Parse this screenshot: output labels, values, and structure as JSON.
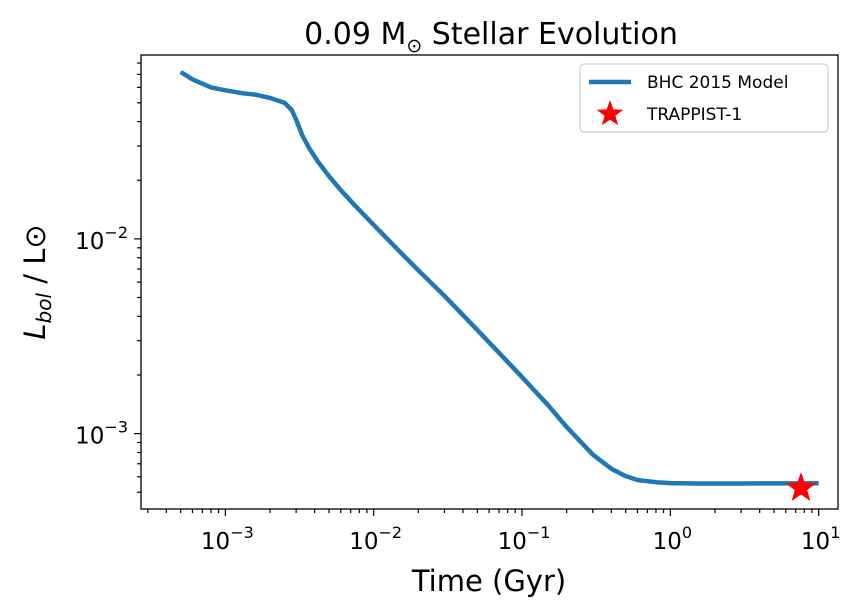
{
  "chart_data": {
    "type": "line",
    "title": "0.09 M",
    "title_symbol": "⊙",
    "title_suffix": "Stellar Evolution",
    "xlabel": "Time (Gyr)",
    "ylabel_main": "L",
    "ylabel_sub": "bol",
    "ylabel_suffix": "/ L⊙",
    "x_scale": "log",
    "y_scale": "log",
    "xlim": [
      0.00027,
      13.5
    ],
    "ylim": [
      0.00041,
      0.088
    ],
    "x_ticks": [
      {
        "value": 0.001,
        "base": "10",
        "exp": "−3"
      },
      {
        "value": 0.01,
        "base": "10",
        "exp": "−2"
      },
      {
        "value": 0.1,
        "base": "10",
        "exp": "−1"
      },
      {
        "value": 1,
        "base": "10",
        "exp": "0"
      },
      {
        "value": 10,
        "base": "10",
        "exp": "1"
      }
    ],
    "y_ticks": [
      {
        "value": 0.001,
        "base": "10",
        "exp": "−3"
      },
      {
        "value": 0.01,
        "base": "10",
        "exp": "−2"
      }
    ],
    "grid": false,
    "legend_position": "top-right",
    "series": [
      {
        "name": "BHC 2015 Model",
        "color": "#1f77b4",
        "x": [
          0.0005,
          0.0006,
          0.0008,
          0.001,
          0.0013,
          0.0016,
          0.002,
          0.0025,
          0.0028,
          0.003,
          0.0033,
          0.0037,
          0.0042,
          0.005,
          0.006,
          0.0075,
          0.01,
          0.015,
          0.02,
          0.03,
          0.05,
          0.07,
          0.1,
          0.15,
          0.2,
          0.3,
          0.4,
          0.5,
          0.6,
          0.8,
          1.0,
          1.5,
          2,
          3,
          5,
          7,
          10
        ],
        "y": [
          0.072,
          0.066,
          0.06,
          0.058,
          0.056,
          0.055,
          0.053,
          0.05,
          0.046,
          0.041,
          0.034,
          0.029,
          0.025,
          0.021,
          0.0178,
          0.0148,
          0.0118,
          0.0086,
          0.0069,
          0.0051,
          0.0034,
          0.0026,
          0.00195,
          0.0014,
          0.00108,
          0.00078,
          0.00066,
          0.000605,
          0.000578,
          0.000563,
          0.000557,
          0.000554,
          0.000554,
          0.000554,
          0.000555,
          0.000555,
          0.000556
        ]
      },
      {
        "name": "TRAPPIST-1",
        "color": "#ff0000",
        "marker": "star",
        "x": [
          7.6
        ],
        "y": [
          0.000525
        ]
      }
    ]
  }
}
